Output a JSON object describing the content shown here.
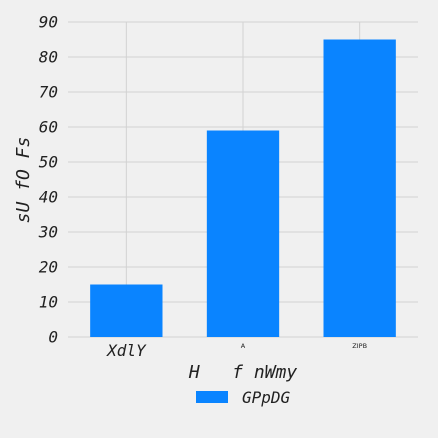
{
  "chart_data": {
    "type": "bar",
    "categories": [
      "XdlY",
      "A",
      "ZIPB"
    ],
    "series": [
      {
        "name": "GPpDG",
        "values": [
          15,
          59,
          85
        ]
      }
    ],
    "title": "",
    "xlabel": "H   f nWmy",
    "ylabel": "sU fO Fs",
    "ylim": [
      0,
      90
    ],
    "yticks": [
      0,
      10,
      20,
      30,
      40,
      50,
      60,
      70,
      80,
      90
    ],
    "grid": true,
    "legend_position": "bottom-center",
    "colors": {
      "bar": "#0a84ff",
      "background": "#f0f0f0",
      "grid": "#d2d2d2"
    }
  }
}
